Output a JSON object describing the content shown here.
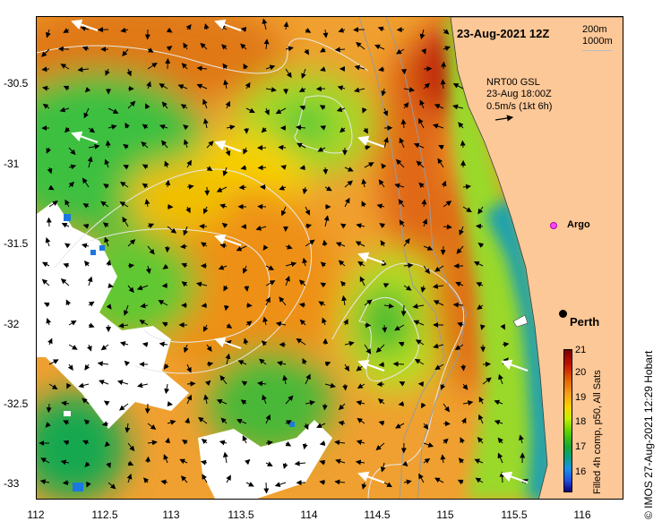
{
  "title": "23-Aug-2021 12Z",
  "isobaths": [
    "200m",
    "1000m"
  ],
  "currents": {
    "line1": "NRT00 GSL",
    "line2": "23-Aug 18:00Z",
    "line3": "0.5m/s (1kt 6h)"
  },
  "places": {
    "argo": "Argo",
    "perth": "Perth"
  },
  "colorbar": {
    "ticks": [
      "21",
      "20",
      "19",
      "18",
      "17",
      "16"
    ],
    "top": "21",
    "label": "Filled 4h comp, p50, All Sats"
  },
  "credit": "© IMOS 27-Aug-2021 12:29 Hobart",
  "axes": {
    "x_ticks": [
      "112",
      "112.5",
      "113",
      "113.5",
      "114",
      "114.5",
      "115",
      "115.5",
      "116"
    ],
    "y_ticks": [
      "-30.5",
      "-31",
      "-31.5",
      "-32",
      "-32.5",
      "-33"
    ]
  },
  "colors": {
    "land": "#fdc898",
    "no_data": "#ffffff",
    "contour": "#e8e8e8",
    "isobath": "#9a9a9a"
  }
}
